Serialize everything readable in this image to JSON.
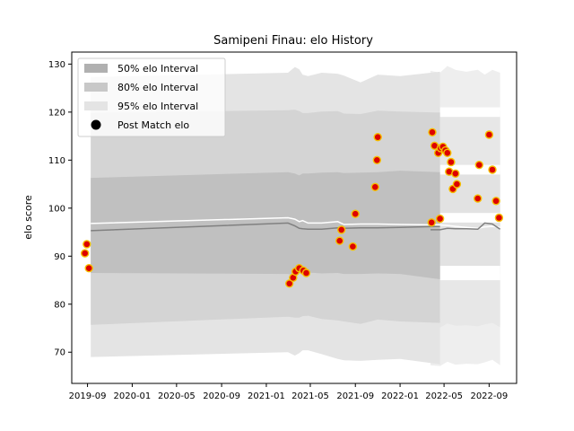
{
  "chart_data": {
    "type": "scatter",
    "title": "Samipeni Finau: elo History",
    "xlabel": "",
    "ylabel": "elo score",
    "ylim": [
      63.5,
      132.5
    ],
    "xlim": [
      "2019-07-20",
      "2022-11-15"
    ],
    "x_ticks": [
      "2019-09",
      "2020-01",
      "2020-05",
      "2020-09",
      "2021-01",
      "2021-05",
      "2021-09",
      "2022-01",
      "2022-05",
      "2022-09"
    ],
    "y_ticks": [
      70,
      80,
      90,
      100,
      110,
      120,
      130
    ],
    "grid": false,
    "legend_position": "top-left",
    "legend": [
      {
        "label": "50% elo Interval",
        "color": "#b0b0b0"
      },
      {
        "label": "80% elo Interval",
        "color": "#c8c8c8"
      },
      {
        "label": "95% elo Interval",
        "color": "#e4e4e4"
      },
      {
        "label": "Post Match elo",
        "color": "#000000"
      }
    ],
    "bands": {
      "x": [
        "2019-09-10",
        "2021-03-01",
        "2021-03-20",
        "2021-04-01",
        "2021-04-10",
        "2021-04-25",
        "2021-06-01",
        "2021-07-15",
        "2021-08-01",
        "2021-09-15",
        "2021-11-01",
        "2022-01-01",
        "2022-04-20"
      ],
      "p95": {
        "upper": [
          127.3,
          128.2,
          129.4,
          128.9,
          127.8,
          127.5,
          128.2,
          128.0,
          127.6,
          126.2,
          127.8,
          127.5,
          128.4
        ],
        "lower": [
          69.0,
          70.0,
          69.3,
          69.8,
          70.4,
          70.4,
          69.6,
          68.6,
          68.3,
          68.2,
          68.4,
          68.6,
          67.5
        ]
      },
      "p80": {
        "upper": [
          119.8,
          120.4,
          120.5,
          120.2,
          119.8,
          119.8,
          120.1,
          120.2,
          119.7,
          119.6,
          120.3,
          120.1,
          119.9
        ],
        "lower": [
          75.7,
          77.4,
          77.2,
          77.2,
          77.5,
          77.6,
          76.9,
          76.6,
          76.4,
          75.9,
          76.8,
          76.4,
          76.1
        ]
      },
      "p50": {
        "upper": [
          106.3,
          107.5,
          107.2,
          106.8,
          107.2,
          107.2,
          107.4,
          107.5,
          107.3,
          107.4,
          107.5,
          107.8,
          107.5
        ],
        "lower": [
          86.5,
          86.3,
          86.0,
          86.5,
          86.5,
          86.6,
          86.4,
          86.5,
          86.3,
          86.3,
          86.4,
          86.3,
          85.2
        ]
      },
      "mean": [
        96.8,
        98.0,
        97.7,
        97.2,
        97.4,
        96.9,
        96.9,
        97.2,
        96.6,
        96.7,
        96.7,
        96.6,
        96.5
      ],
      "median": [
        95.3,
        96.9,
        96.3,
        95.8,
        95.7,
        95.6,
        95.6,
        95.9,
        95.8,
        95.9,
        95.9,
        96.0,
        96.2
      ]
    },
    "forecast_bands": {
      "x": [
        "2022-03-25",
        "2022-04-20",
        "2022-05-10",
        "2022-06-01",
        "2022-07-01",
        "2022-08-01",
        "2022-08-20",
        "2022-09-10",
        "2022-10-01"
      ],
      "p95_upper": [
        128.6,
        128.2,
        129.6,
        128.8,
        128.4,
        128.8,
        127.8,
        128.8,
        128.2
      ],
      "p95_lower": [
        67.3,
        67.1,
        68.0,
        67.4,
        67.6,
        67.5,
        67.9,
        68.4,
        67.3
      ],
      "p80_upper": [
        120.3,
        120.0,
        121.0,
        120.2,
        120.2,
        120.6,
        119.9,
        120.7,
        120.2
      ],
      "p80_lower": [
        75.3,
        75.1,
        76.0,
        75.5,
        75.6,
        75.4,
        75.8,
        76.1,
        75.2
      ],
      "p50_upper": [
        108.0,
        107.9,
        108.1,
        107.5,
        107.4,
        108.0,
        108.4,
        108.4,
        107.7
      ],
      "p50_lower": [
        86.0,
        85.9,
        86.9,
        86.2,
        86.4,
        86.2,
        86.6,
        87.1,
        86.3
      ],
      "mean": [
        96.6,
        96.5,
        96.4,
        96.2,
        96.0,
        95.8,
        96.1,
        96.2,
        96.0
      ],
      "median": [
        95.5,
        95.5,
        95.8,
        95.7,
        95.7,
        95.6,
        96.9,
        96.7,
        95.6
      ]
    },
    "points": [
      {
        "x": "2019-08-25",
        "y": 90.6
      },
      {
        "x": "2019-08-30",
        "y": 92.5
      },
      {
        "x": "2019-09-05",
        "y": 87.5
      },
      {
        "x": "2021-03-05",
        "y": 84.3
      },
      {
        "x": "2021-03-15",
        "y": 85.5
      },
      {
        "x": "2021-03-22",
        "y": 86.8
      },
      {
        "x": "2021-04-01",
        "y": 87.5
      },
      {
        "x": "2021-04-12",
        "y": 87.0
      },
      {
        "x": "2021-04-20",
        "y": 86.5
      },
      {
        "x": "2021-07-20",
        "y": 93.2
      },
      {
        "x": "2021-07-25",
        "y": 95.5
      },
      {
        "x": "2021-08-25",
        "y": 92.0
      },
      {
        "x": "2021-09-01",
        "y": 98.8
      },
      {
        "x": "2021-10-25",
        "y": 104.4
      },
      {
        "x": "2021-10-30",
        "y": 110.0
      },
      {
        "x": "2021-11-01",
        "y": 114.8
      },
      {
        "x": "2022-03-28",
        "y": 97.0
      },
      {
        "x": "2022-03-30",
        "y": 115.8
      },
      {
        "x": "2022-04-05",
        "y": 113.0
      },
      {
        "x": "2022-04-15",
        "y": 111.5
      },
      {
        "x": "2022-04-20",
        "y": 97.8
      },
      {
        "x": "2022-04-22",
        "y": 112.5
      },
      {
        "x": "2022-04-28",
        "y": 112.8
      },
      {
        "x": "2022-05-05",
        "y": 112.0
      },
      {
        "x": "2022-05-10",
        "y": 111.5
      },
      {
        "x": "2022-05-15",
        "y": 107.6
      },
      {
        "x": "2022-05-20",
        "y": 109.6
      },
      {
        "x": "2022-05-25",
        "y": 104.0
      },
      {
        "x": "2022-06-01",
        "y": 107.2
      },
      {
        "x": "2022-06-05",
        "y": 105.0
      },
      {
        "x": "2022-08-01",
        "y": 102.0
      },
      {
        "x": "2022-08-05",
        "y": 109.0
      },
      {
        "x": "2022-09-01",
        "y": 115.3
      },
      {
        "x": "2022-09-10",
        "y": 108.0
      },
      {
        "x": "2022-09-20",
        "y": 101.5
      },
      {
        "x": "2022-09-28",
        "y": 98.0
      }
    ],
    "colors": {
      "point_fill": "#dd0000",
      "point_edge": "#f5c000",
      "mean_line": "#ffffff",
      "median_line": "#808080"
    }
  }
}
